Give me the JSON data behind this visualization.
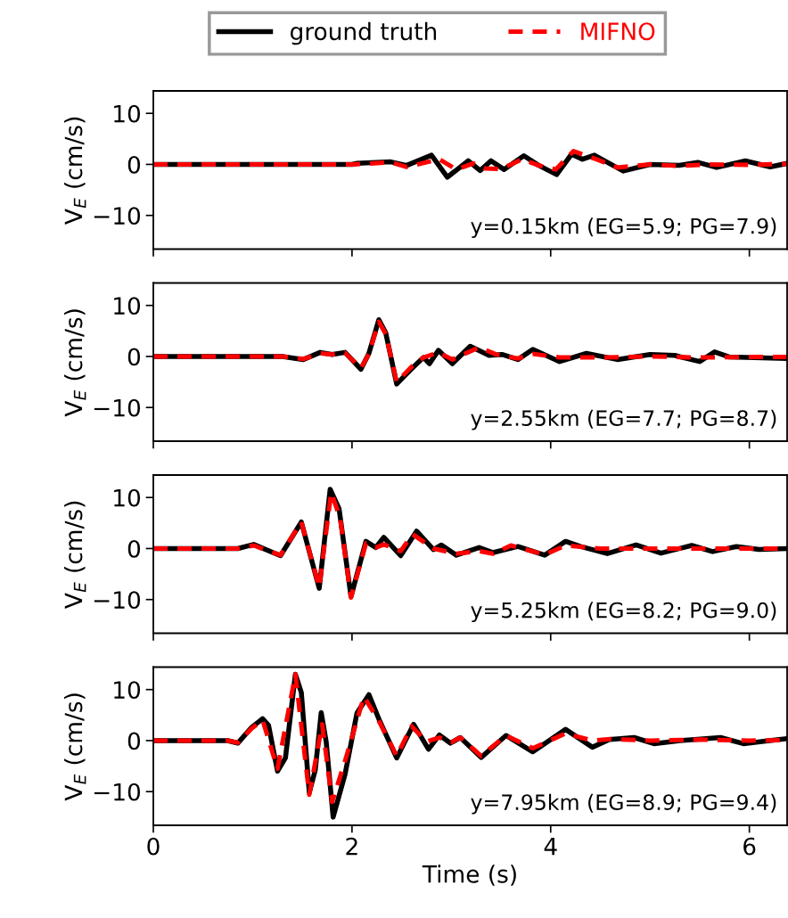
{
  "chart_data": [
    {
      "type": "line",
      "ylabel": "V$_{E}$ (cm/s)",
      "xlim": [
        0,
        6.38
      ],
      "ylim": [
        -16.6,
        14.4
      ],
      "xticks": [
        0,
        2,
        4,
        6
      ],
      "yticks": [
        -10,
        0,
        10
      ],
      "tick_labels": "y",
      "legend": "top",
      "grid": false,
      "annotations": [
        "y=0.15km (EG=5.9; PG=7.9)"
      ],
      "series": [
        {
          "name": "ground truth",
          "color": "#000000",
          "line_style": "solid",
          "x": [
            0,
            1.0,
            2.0,
            2.05,
            2.39,
            2.55,
            2.8,
            2.96,
            3.17,
            3.29,
            3.4,
            3.53,
            3.73,
            3.88,
            4.06,
            4.21,
            4.32,
            4.44,
            4.73,
            5.0,
            5.29,
            5.48,
            5.67,
            5.96,
            6.21,
            6.38
          ],
          "values": [
            0,
            0,
            0,
            0.2,
            0.5,
            -0.2,
            1.8,
            -2.5,
            0.7,
            -1.2,
            0.7,
            -1.0,
            1.7,
            -0.2,
            -2.0,
            2.0,
            1.0,
            1.8,
            -1.3,
            0,
            -0.2,
            0.4,
            -0.6,
            0.7,
            -0.5,
            0.2
          ]
        },
        {
          "name": "MIFNO",
          "color": "#ff0000",
          "line_style": "dashed",
          "x": [
            0,
            1.0,
            2.0,
            2.39,
            2.55,
            2.88,
            3.05,
            3.22,
            3.34,
            3.5,
            3.71,
            3.88,
            4.05,
            4.23,
            4.34,
            4.46,
            4.67,
            5.0,
            5.3,
            5.6,
            6.0,
            6.38
          ],
          "values": [
            0,
            0,
            0,
            0.4,
            -0.5,
            1.0,
            -1.0,
            0.2,
            -0.8,
            -0.9,
            1.0,
            -0.2,
            -1.0,
            2.6,
            1.8,
            1.0,
            -0.6,
            0,
            -0.3,
            0,
            -0.1,
            0.1
          ]
        }
      ]
    },
    {
      "type": "line",
      "ylabel": "V$_{E}$ (cm/s)",
      "xlim": [
        0,
        6.38
      ],
      "ylim": [
        -16.6,
        14.4
      ],
      "xticks": [
        0,
        2,
        4,
        6
      ],
      "yticks": [
        -10,
        0,
        10
      ],
      "tick_labels": "y",
      "grid": false,
      "annotations": [
        "y=2.55km (EG=7.7; PG=8.7)"
      ],
      "series": [
        {
          "color": "#000000",
          "line_style": "solid",
          "x": [
            0,
            1.3,
            1.51,
            1.68,
            1.8,
            1.93,
            2.09,
            2.17,
            2.27,
            2.34,
            2.45,
            2.59,
            2.72,
            2.78,
            2.87,
            3.01,
            3.19,
            3.38,
            3.51,
            3.67,
            3.82,
            4.09,
            4.36,
            4.67,
            5.0,
            5.25,
            5.5,
            5.65,
            5.8,
            6.38
          ],
          "values": [
            0,
            0,
            -0.6,
            0.8,
            0.4,
            0.8,
            -2.5,
            0.6,
            7.2,
            4.6,
            -5.4,
            -2.6,
            -0.2,
            -1.4,
            1.2,
            -1.4,
            2.0,
            0.2,
            0.4,
            -0.6,
            1.4,
            -1.0,
            0.6,
            -0.6,
            0.4,
            0.2,
            -1.0,
            0.9,
            -0.1,
            -0.4
          ]
        },
        {
          "color": "#ff0000",
          "line_style": "dashed",
          "x": [
            0,
            1.3,
            1.51,
            1.68,
            1.8,
            1.93,
            2.09,
            2.17,
            2.27,
            2.34,
            2.45,
            2.6,
            2.72,
            2.87,
            3.01,
            3.19,
            3.28,
            3.45,
            3.67,
            3.82,
            4.09,
            4.5,
            5.0,
            5.5,
            6.0,
            6.38
          ],
          "values": [
            0,
            0,
            -0.5,
            0.6,
            0.4,
            0.7,
            -2.3,
            0.5,
            6.8,
            4.4,
            -5.0,
            -2.0,
            -0.2,
            0.8,
            -0.6,
            1.0,
            1.8,
            0.4,
            -0.4,
            0.5,
            -0.2,
            -0.2,
            0,
            -0.2,
            -0.1,
            -0.1
          ]
        }
      ]
    },
    {
      "type": "line",
      "ylabel": "V$_{E}$ (cm/s)",
      "xlim": [
        0,
        6.38
      ],
      "ylim": [
        -16.6,
        14.4
      ],
      "xticks": [
        0,
        2,
        4,
        6
      ],
      "yticks": [
        -10,
        0,
        10
      ],
      "tick_labels": "y",
      "grid": false,
      "annotations": [
        "y=5.25km (EG=8.2; PG=9.0)"
      ],
      "series": [
        {
          "color": "#000000",
          "line_style": "solid",
          "x": [
            0,
            0.85,
            1.01,
            1.28,
            1.49,
            1.67,
            1.78,
            1.87,
            1.99,
            2.14,
            2.24,
            2.32,
            2.49,
            2.65,
            2.82,
            2.9,
            3.05,
            3.28,
            3.42,
            3.67,
            3.94,
            4.15,
            4.3,
            4.57,
            4.86,
            5.11,
            5.42,
            5.63,
            5.87,
            6.1,
            6.38
          ],
          "values": [
            0,
            0,
            0.8,
            -1.4,
            5.2,
            -7.8,
            11.6,
            7.8,
            -9.4,
            1.4,
            0.2,
            2.2,
            -1.4,
            3.4,
            -0.2,
            0.7,
            -1.3,
            0.2,
            -0.8,
            0.4,
            -1.3,
            1.4,
            0.4,
            -1.0,
            0.7,
            -0.9,
            0.6,
            -0.6,
            0.4,
            -0.2,
            0
          ]
        },
        {
          "color": "#ff0000",
          "line_style": "dashed",
          "x": [
            0,
            0.85,
            1.01,
            1.28,
            1.49,
            1.67,
            1.79,
            1.88,
            1.99,
            2.14,
            2.24,
            2.32,
            2.49,
            2.61,
            2.82,
            3.05,
            3.28,
            3.42,
            3.6,
            3.94,
            4.15,
            4.5,
            5.0,
            5.5,
            6.0,
            6.38
          ],
          "values": [
            0,
            0,
            0.6,
            -1.3,
            5.2,
            -7.6,
            11.0,
            6.0,
            -9.6,
            1.0,
            0.2,
            0.8,
            -0.5,
            2.8,
            0,
            -1.0,
            -0.5,
            -1.0,
            0.6,
            -1.2,
            0.6,
            0,
            0,
            0,
            0,
            0
          ]
        }
      ]
    },
    {
      "type": "line",
      "ylabel": "V$_{E}$ (cm/s)",
      "xlabel": "Time (s)",
      "xlim": [
        0,
        6.38
      ],
      "ylim": [
        -16.6,
        14.4
      ],
      "xticks": [
        0,
        2,
        4,
        6
      ],
      "yticks": [
        -10,
        0,
        10
      ],
      "grid": false,
      "annotations": [
        "y=7.95km (EG=8.9; PG=9.4)"
      ],
      "series": [
        {
          "color": "#000000",
          "line_style": "solid",
          "x": [
            0,
            0.75,
            0.85,
            0.99,
            1.1,
            1.16,
            1.25,
            1.33,
            1.43,
            1.49,
            1.57,
            1.63,
            1.69,
            1.74,
            1.81,
            1.93,
            2.05,
            2.17,
            2.28,
            2.45,
            2.62,
            2.77,
            2.88,
            2.99,
            3.09,
            3.3,
            3.55,
            3.82,
            4.15,
            4.42,
            4.59,
            4.84,
            5.04,
            5.3,
            5.71,
            5.94,
            6.2,
            6.38
          ],
          "values": [
            0,
            0,
            -0.5,
            2.6,
            4.3,
            3.0,
            -6.0,
            -3.4,
            13.0,
            9.4,
            -10.2,
            -5.8,
            5.5,
            -0.2,
            -15.0,
            -6.6,
            5.4,
            9.0,
            3.8,
            -3.4,
            3.2,
            -1.7,
            1.1,
            -0.5,
            0.6,
            -3.3,
            1.0,
            -2.2,
            2.2,
            -1.3,
            0.2,
            0.6,
            -0.6,
            0,
            0.6,
            -0.6,
            0,
            0.4
          ]
        },
        {
          "color": "#ff0000",
          "line_style": "dashed",
          "x": [
            0,
            0.75,
            0.85,
            0.99,
            1.1,
            1.25,
            1.43,
            1.57,
            1.7,
            1.8,
            1.93,
            2.12,
            2.28,
            2.45,
            2.6,
            2.75,
            2.88,
            3.0,
            3.09,
            3.3,
            3.55,
            3.82,
            4.15,
            4.42,
            4.6,
            5.0,
            5.5,
            6.0,
            6.38
          ],
          "values": [
            0,
            0,
            -0.4,
            2.4,
            4.0,
            -5.5,
            13.0,
            -10.6,
            3.2,
            -12.0,
            -4.0,
            8.6,
            3.5,
            -3.0,
            2.8,
            -0.2,
            0.6,
            -0.3,
            0.6,
            -3.0,
            1.0,
            -1.5,
            1.4,
            0,
            0.3,
            0,
            0.2,
            0,
            0.1
          ]
        }
      ]
    }
  ]
}
